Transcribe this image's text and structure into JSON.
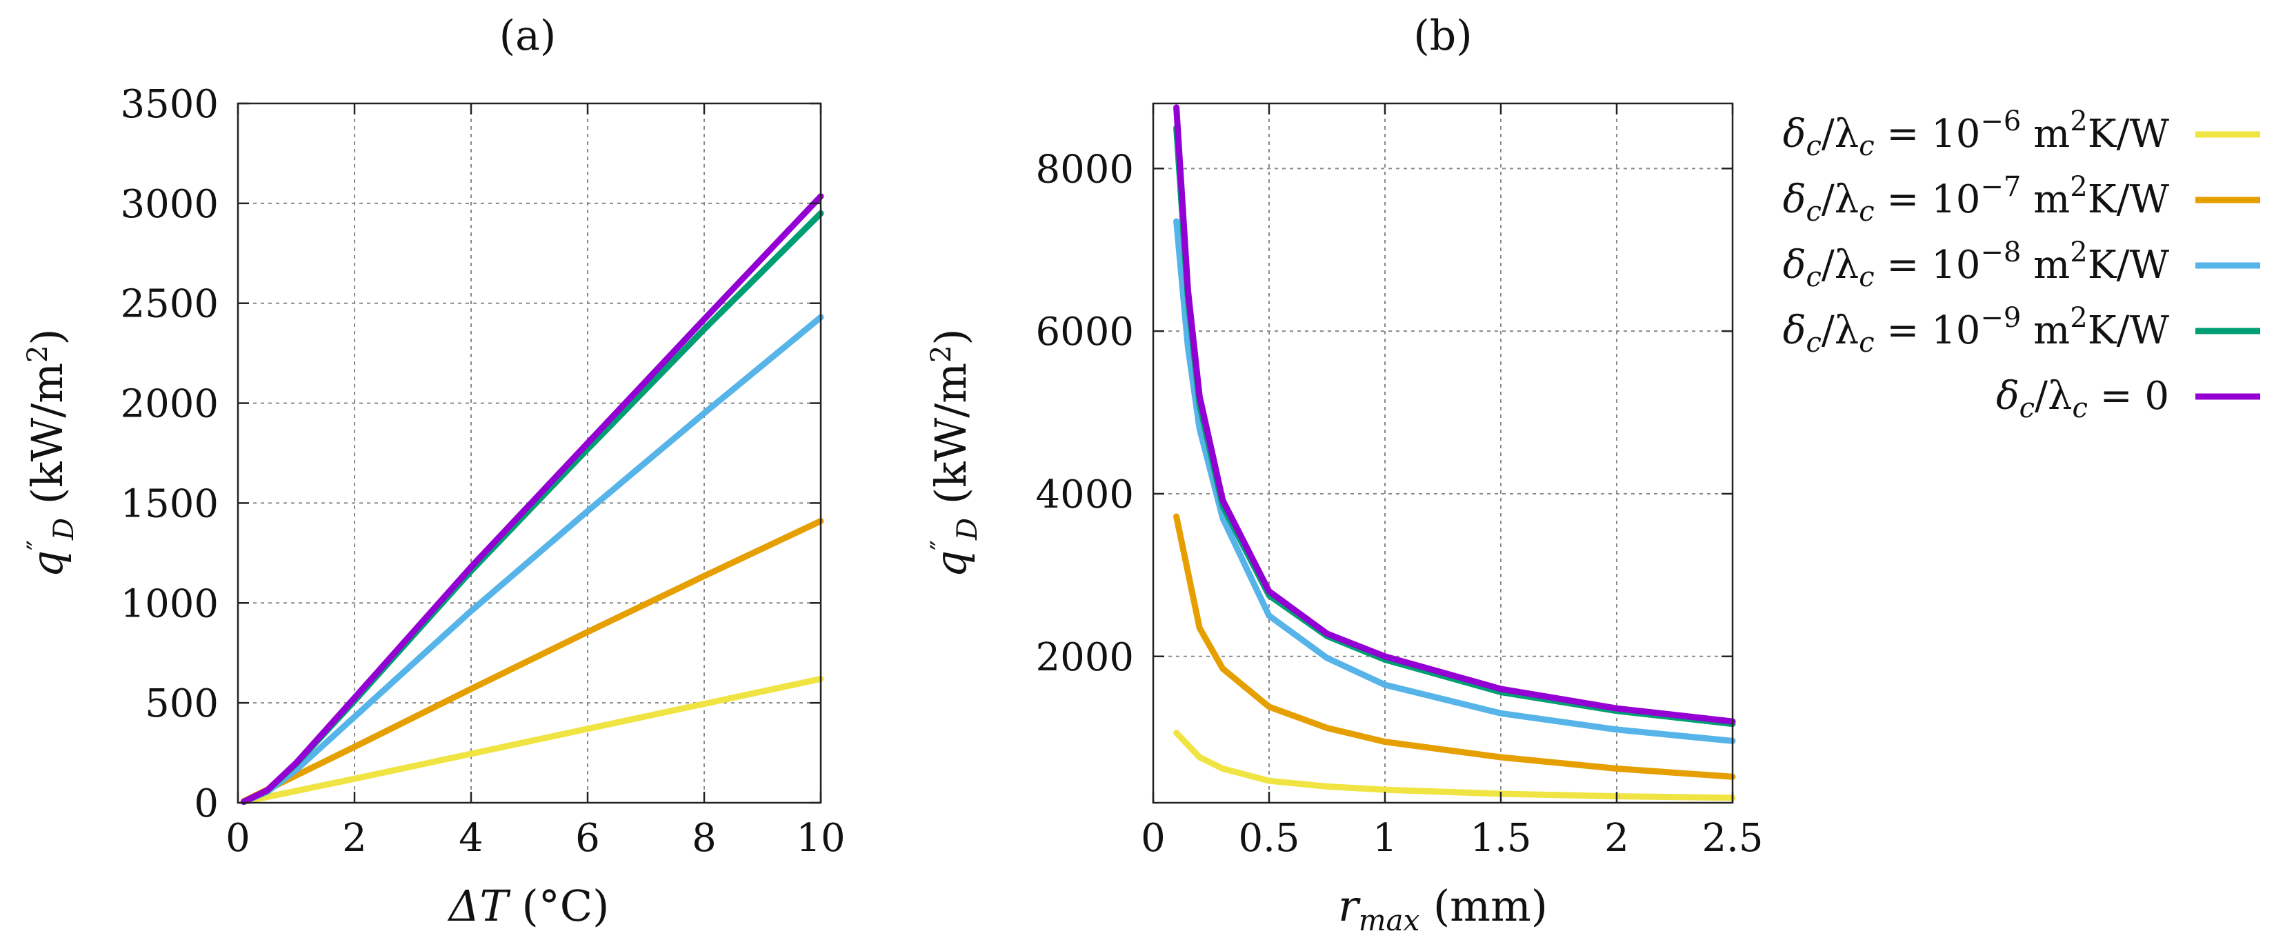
{
  "colors": {
    "s6": "#f0e442",
    "s7": "#e69f00",
    "s8": "#56b4e9",
    "s9": "#009e73",
    "s0": "#9400d3"
  },
  "chart_data": [
    {
      "id": "a",
      "type": "line",
      "panel_label": "(a)",
      "xlabel": "ΔT (°C)",
      "ylabel": "q″_D (kW/m²)",
      "xlim": [
        0,
        10
      ],
      "ylim": [
        0,
        3500
      ],
      "xticks": [
        0,
        2,
        4,
        6,
        8,
        10
      ],
      "yticks": [
        0,
        500,
        1000,
        1500,
        2000,
        2500,
        3000,
        3500
      ],
      "grid": true,
      "series": [
        {
          "key": "s6",
          "name": "δc/λc = 10^-6 m²K/W",
          "x": [
            0.1,
            2,
            4,
            6,
            8,
            10
          ],
          "y": [
            5,
            120,
            245,
            370,
            495,
            620
          ]
        },
        {
          "key": "s7",
          "name": "δc/λc = 10^-7 m²K/W",
          "x": [
            0.1,
            2,
            4,
            6,
            8,
            10
          ],
          "y": [
            8,
            280,
            570,
            855,
            1135,
            1410
          ]
        },
        {
          "key": "s8",
          "name": "δc/λc = 10^-8 m²K/W",
          "x": [
            0.1,
            0.5,
            1,
            2,
            4,
            6,
            8,
            10
          ],
          "y": [
            5,
            55,
            165,
            430,
            960,
            1460,
            1950,
            2430
          ]
        },
        {
          "key": "s9",
          "name": "δc/λc = 10^-9 m²K/W",
          "x": [
            0.1,
            0.5,
            1,
            2,
            4,
            6,
            8,
            10
          ],
          "y": [
            5,
            60,
            195,
            510,
            1160,
            1770,
            2370,
            2950
          ]
        },
        {
          "key": "s0",
          "name": "δc/λc = 0",
          "x": [
            0.1,
            0.5,
            1,
            2,
            4,
            6,
            8,
            10
          ],
          "y": [
            5,
            62,
            200,
            525,
            1180,
            1800,
            2420,
            3035
          ]
        }
      ]
    },
    {
      "id": "b",
      "type": "line",
      "panel_label": "(b)",
      "xlabel": "r_max (mm)",
      "ylabel": "q″_D (kW/m²)",
      "xlim": [
        0,
        2.5
      ],
      "ylim": [
        200,
        8800
      ],
      "xticks": [
        0,
        0.5,
        1,
        1.5,
        2,
        2.5
      ],
      "xtick_labels": [
        "0",
        "0.5",
        "1",
        "1.5",
        "2",
        "2.5"
      ],
      "yticks": [
        2000,
        4000,
        6000,
        8000
      ],
      "grid": true,
      "series": [
        {
          "key": "s6",
          "name": "δc/λc = 10^-6 m²K/W",
          "x": [
            0.1,
            0.2,
            0.3,
            0.5,
            0.75,
            1.0,
            1.5,
            2.0,
            2.5
          ],
          "y": [
            1060,
            760,
            620,
            470,
            400,
            360,
            310,
            280,
            260
          ]
        },
        {
          "key": "s7",
          "name": "δc/λc = 10^-7 m²K/W",
          "x": [
            0.1,
            0.2,
            0.3,
            0.5,
            0.75,
            1.0,
            1.5,
            2.0,
            2.5
          ],
          "y": [
            3720,
            2350,
            1850,
            1380,
            1120,
            950,
            760,
            620,
            520
          ]
        },
        {
          "key": "s8",
          "name": "δc/λc = 10^-8 m²K/W",
          "x": [
            0.1,
            0.15,
            0.2,
            0.3,
            0.5,
            0.75,
            1.0,
            1.5,
            2.0,
            2.5
          ],
          "y": [
            7350,
            5800,
            4800,
            3700,
            2500,
            1980,
            1650,
            1300,
            1100,
            960
          ]
        },
        {
          "key": "s9",
          "name": "δc/λc = 10^-9 m²K/W",
          "x": [
            0.1,
            0.15,
            0.2,
            0.3,
            0.5,
            0.75,
            1.0,
            1.5,
            2.0,
            2.5
          ],
          "y": [
            8500,
            6400,
            5100,
            3850,
            2750,
            2250,
            1960,
            1560,
            1330,
            1170
          ]
        },
        {
          "key": "s0",
          "name": "δc/λc = 0",
          "x": [
            0.1,
            0.15,
            0.2,
            0.3,
            0.5,
            0.75,
            1.0,
            1.5,
            2.0,
            2.5
          ],
          "y": [
            8750,
            6500,
            5200,
            3920,
            2800,
            2280,
            2000,
            1600,
            1360,
            1200
          ]
        }
      ]
    }
  ],
  "legend": {
    "placement": "right",
    "entries": [
      {
        "key": "s6",
        "prefix": "δ",
        "sub1": "c",
        "mid": "/λ",
        "sub2": "c",
        "eq": " = 10",
        "sup": "−6",
        "unit_a": " m",
        "unit_sup": "2",
        "unit_b": "K/W"
      },
      {
        "key": "s7",
        "prefix": "δ",
        "sub1": "c",
        "mid": "/λ",
        "sub2": "c",
        "eq": " = 10",
        "sup": "−7",
        "unit_a": " m",
        "unit_sup": "2",
        "unit_b": "K/W"
      },
      {
        "key": "s8",
        "prefix": "δ",
        "sub1": "c",
        "mid": "/λ",
        "sub2": "c",
        "eq": " = 10",
        "sup": "−8",
        "unit_a": " m",
        "unit_sup": "2",
        "unit_b": "K/W"
      },
      {
        "key": "s9",
        "prefix": "δ",
        "sub1": "c",
        "mid": "/λ",
        "sub2": "c",
        "eq": " = 10",
        "sup": "−9",
        "unit_a": " m",
        "unit_sup": "2",
        "unit_b": "K/W"
      },
      {
        "key": "s0",
        "prefix": "δ",
        "sub1": "c",
        "mid": "/λ",
        "sub2": "c",
        "eq": " = 0",
        "sup": "",
        "unit_a": "",
        "unit_sup": "",
        "unit_b": ""
      }
    ]
  },
  "labels": {
    "a_x_main": "ΔT",
    "a_x_unit": " (°C)",
    "y_q": "q",
    "y_prime": "″",
    "y_sub": "D",
    "y_unit_a": " (kW/m",
    "y_unit_sup": "2",
    "y_unit_b": ")",
    "b_x_main": "r",
    "b_x_sub": "max",
    "b_x_unit": " (mm)"
  }
}
